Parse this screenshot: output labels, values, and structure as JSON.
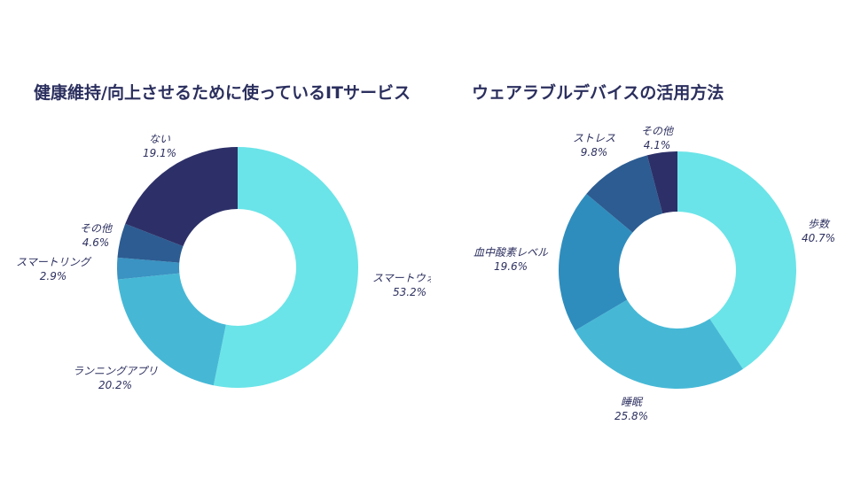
{
  "chart_data": [
    {
      "type": "pie",
      "title": "健康維持/向上させるために使っているITサービス",
      "slices": [
        {
          "label": "スマートウォッチ",
          "value": 53.2,
          "display": "53.2%",
          "color": "#6ae4e8"
        },
        {
          "label": "ランニングアプリ",
          "value": 20.2,
          "display": "20.2%",
          "color": "#46b8d6"
        },
        {
          "label": "スマートリング",
          "value": 2.9,
          "display": "2.9%",
          "color": "#3a93c2"
        },
        {
          "label": "その他",
          "value": 4.6,
          "display": "4.6%",
          "color": "#2c5c92"
        },
        {
          "label": "ない",
          "value": 19.1,
          "display": "19.1%",
          "color": "#2d3068"
        }
      ]
    },
    {
      "type": "pie",
      "title": "ウェアラブルデバイスの活用方法",
      "slices": [
        {
          "label": "歩数",
          "value": 40.7,
          "display": "40.7%",
          "color": "#6ae4e8"
        },
        {
          "label": "睡眠",
          "value": 25.8,
          "display": "25.8%",
          "color": "#46b8d6"
        },
        {
          "label": "血中酸素レベル",
          "value": 19.6,
          "display": "19.6%",
          "color": "#2f8dbd"
        },
        {
          "label": "ストレス",
          "value": 9.8,
          "display": "9.8%",
          "color": "#2c5c92"
        },
        {
          "label": "その他",
          "value": 4.1,
          "display": "4.1%",
          "color": "#2d3068"
        }
      ]
    }
  ]
}
